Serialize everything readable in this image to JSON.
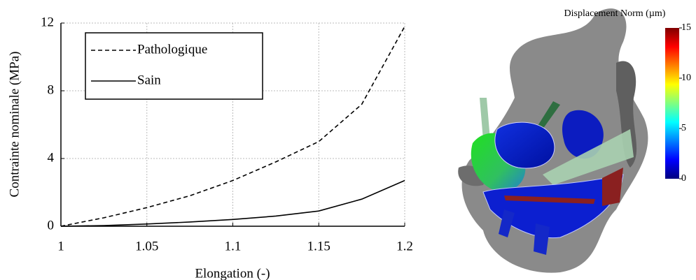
{
  "chart_data": [
    {
      "type": "line",
      "x_label": "Elongation (-)",
      "y_label": "Contrainte nominale (MPa)",
      "x": [
        1,
        1.025,
        1.05,
        1.075,
        1.1,
        1.125,
        1.15,
        1.175,
        1.2
      ],
      "series": [
        {
          "name": "Pathologique",
          "color": "#000000",
          "dashed": true,
          "values": [
            0,
            0.5,
            1.1,
            1.8,
            2.7,
            3.8,
            5.0,
            7.2,
            11.8
          ]
        },
        {
          "name": "Sain",
          "color": "#000000",
          "dashed": false,
          "values": [
            0,
            0.04,
            0.13,
            0.25,
            0.4,
            0.6,
            0.9,
            1.6,
            2.7
          ]
        }
      ],
      "xlim": [
        1,
        1.2
      ],
      "xticks": [
        1,
        1.05,
        1.1,
        1.15,
        1.2
      ],
      "ylim": [
        0,
        12
      ],
      "yticks": [
        0,
        4,
        8,
        12
      ],
      "grid": true,
      "legend": "upper left"
    },
    {
      "type": "colorbar",
      "title": "Displacement Norm (µm)",
      "ylim": [
        0,
        15
      ],
      "yticks": [
        0,
        5,
        10,
        15
      ],
      "colormap": [
        "#00007f",
        "#0000ff",
        "#0080ff",
        "#00ffff",
        "#80ff80",
        "#ffff00",
        "#ff8000",
        "#ff0000",
        "#7f0000"
      ]
    }
  ]
}
